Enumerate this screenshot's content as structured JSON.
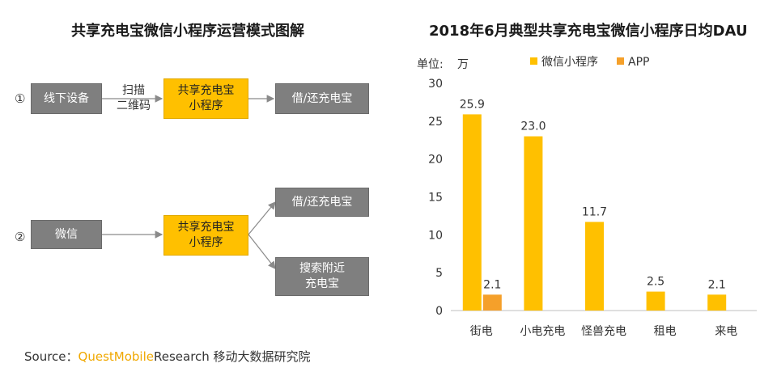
{
  "left_panel": {
    "title": "共享充电宝微信小程序运营模式图解",
    "row1": {
      "number": "①",
      "device": "线下设备",
      "scan_line1": "扫描",
      "scan_line2": "二维码",
      "mini_line1": "共享充电宝",
      "mini_line2": "小程序",
      "result": "借/还充电宝"
    },
    "row2": {
      "number": "②",
      "source": "微信",
      "mini_line1": "共享充电宝",
      "mini_line2": "小程序",
      "result1": "借/还充电宝",
      "result2_line1": "搜索附近",
      "result2_line2": "充电宝"
    }
  },
  "right_panel": {
    "title": "2018年6月典型共享充电宝微信小程序日均DAU"
  },
  "colors": {
    "gray_box": "#7f7f7f",
    "yellow_box": "#ffc000",
    "series_wechat": "#ffc000",
    "series_app": "#f5a02a"
  },
  "chart_data": {
    "type": "bar",
    "title": "2018年6月典型共享充电宝微信小程序日均DAU",
    "ylabel": "单位：万",
    "unit_label": "单位:",
    "unit_value": "万",
    "categories": [
      "街电",
      "小电充电",
      "怪兽充电",
      "租电",
      "来电"
    ],
    "series": [
      {
        "name": "微信小程序",
        "values": [
          25.9,
          23.0,
          11.7,
          2.5,
          2.1
        ],
        "labels": [
          "25.9",
          "23.0",
          "11.7",
          "2.5",
          "2.1"
        ]
      },
      {
        "name": "APP",
        "values": [
          2.1,
          null,
          null,
          null,
          null
        ],
        "labels": [
          "2.1",
          "",
          "",
          "",
          ""
        ]
      }
    ],
    "ylim": [
      0,
      30
    ],
    "yticks": [
      "0",
      "5",
      "10",
      "15",
      "20",
      "25",
      "30"
    ],
    "grid": false,
    "legend": "top"
  },
  "source": {
    "prefix": "Source：",
    "brand": "QuestMobile",
    "suffix": "Research 移动大数据研究院"
  }
}
